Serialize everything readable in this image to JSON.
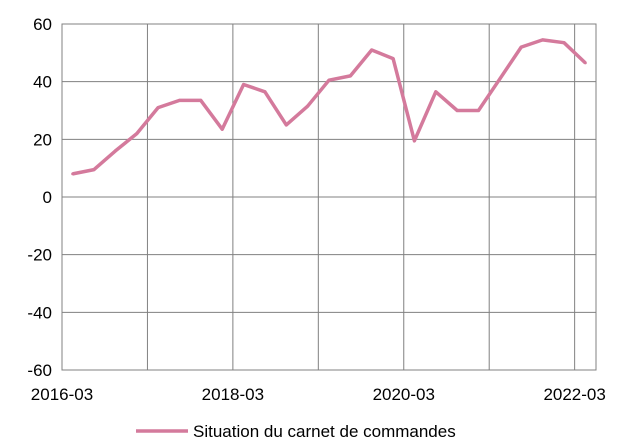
{
  "chart_data": {
    "type": "line",
    "title": "",
    "xlabel": "",
    "ylabel": "",
    "x": [
      "2016-03",
      "2016-06",
      "2016-09",
      "2016-12",
      "2017-03",
      "2017-06",
      "2017-09",
      "2017-12",
      "2018-03",
      "2018-06",
      "2018-09",
      "2018-12",
      "2019-03",
      "2019-06",
      "2019-09",
      "2019-12",
      "2020-03",
      "2020-06",
      "2020-09",
      "2020-12",
      "2021-03",
      "2021-06",
      "2021-09",
      "2021-12",
      "2022-03"
    ],
    "x_tick_labels": [
      "2016-03",
      "2018-03",
      "2020-03",
      "2022-03"
    ],
    "y_tick_labels": [
      "60",
      "40",
      "20",
      "0",
      "-20",
      "-40",
      "-60"
    ],
    "ylim": [
      -60,
      60
    ],
    "grid": true,
    "legend_position": "bottom-center",
    "series": [
      {
        "name": "Situation du carnet de commandes",
        "color": "#d47a9c",
        "values": [
          8,
          9.5,
          16,
          22,
          31,
          33.5,
          33.5,
          23.5,
          39,
          36.5,
          25,
          31.5,
          40.5,
          42,
          51,
          48,
          19.5,
          36.5,
          30,
          30,
          41,
          52,
          54.5,
          53.5,
          46.5
        ]
      }
    ]
  }
}
